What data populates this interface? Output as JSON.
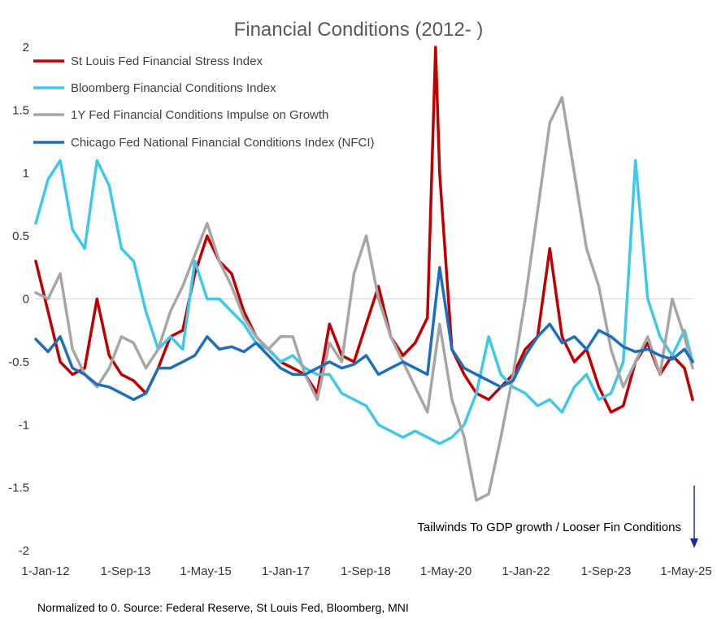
{
  "chart_data": {
    "type": "line",
    "title": "Financial Conditions (2012- )",
    "xlabel": "",
    "ylabel": "",
    "x_tick_labels": [
      "1-Jan-12",
      "1-Sep-13",
      "1-May-15",
      "1-Jan-17",
      "1-Sep-18",
      "1-May-20",
      "1-Jan-22",
      "1-Sep-23",
      "1-May-25"
    ],
    "x_range": [
      "2012-01",
      "2025-06"
    ],
    "ylim": [
      -2,
      2
    ],
    "y_ticks": [
      2,
      1.5,
      1,
      0.5,
      0,
      -0.5,
      -1,
      -1.5,
      -2
    ],
    "y_tick_labels": [
      "2",
      "1.5",
      "1",
      "0.5",
      "0",
      "-0.5",
      "-1",
      "-1.5",
      "-2"
    ],
    "zero_line": true,
    "grid": false,
    "legend_position": "top-left",
    "annotation": "Tailwinds  To GDP growth / Looser Fin Conditions",
    "annotation_arrow": "down",
    "footer": "Normalized to 0. Source: Federal Reserve, St Louis Fed, Bloomberg, MNI",
    "series": [
      {
        "name": "St Louis Fed Financial Stress Index",
        "color": "#c00000",
        "x": [
          "2012-01",
          "2012-04",
          "2012-07",
          "2012-10",
          "2013-01",
          "2013-04",
          "2013-07",
          "2013-10",
          "2014-01",
          "2014-04",
          "2014-07",
          "2014-10",
          "2015-01",
          "2015-04",
          "2015-07",
          "2015-10",
          "2016-01",
          "2016-04",
          "2016-07",
          "2016-10",
          "2017-01",
          "2017-04",
          "2017-07",
          "2017-10",
          "2018-01",
          "2018-04",
          "2018-07",
          "2018-10",
          "2019-01",
          "2019-04",
          "2019-07",
          "2019-10",
          "2020-01",
          "2020-03",
          "2020-04",
          "2020-07",
          "2020-10",
          "2021-01",
          "2021-04",
          "2021-07",
          "2021-10",
          "2022-01",
          "2022-04",
          "2022-07",
          "2022-10",
          "2023-01",
          "2023-04",
          "2023-07",
          "2023-10",
          "2024-01",
          "2024-04",
          "2024-07",
          "2024-10",
          "2025-01",
          "2025-04",
          "2025-06"
        ],
        "values": [
          0.3,
          -0.1,
          -0.5,
          -0.6,
          -0.55,
          0.0,
          -0.45,
          -0.6,
          -0.65,
          -0.75,
          -0.55,
          -0.3,
          -0.25,
          0.2,
          0.5,
          0.3,
          0.2,
          -0.1,
          -0.3,
          -0.4,
          -0.5,
          -0.55,
          -0.6,
          -0.75,
          -0.2,
          -0.45,
          -0.5,
          -0.2,
          0.1,
          -0.3,
          -0.45,
          -0.35,
          -0.15,
          2.0,
          1.0,
          -0.4,
          -0.6,
          -0.75,
          -0.8,
          -0.7,
          -0.6,
          -0.4,
          -0.3,
          0.4,
          -0.3,
          -0.5,
          -0.4,
          -0.7,
          -0.9,
          -0.85,
          -0.5,
          -0.35,
          -0.6,
          -0.45,
          -0.55,
          -0.8
        ]
      },
      {
        "name": "Bloomberg Financial Conditions Index",
        "color": "#3ec8ea",
        "x": [
          "2012-01",
          "2012-04",
          "2012-07",
          "2012-10",
          "2013-01",
          "2013-04",
          "2013-07",
          "2013-10",
          "2014-01",
          "2014-04",
          "2014-07",
          "2014-10",
          "2015-01",
          "2015-04",
          "2015-07",
          "2015-10",
          "2016-01",
          "2016-04",
          "2016-07",
          "2016-10",
          "2017-01",
          "2017-04",
          "2017-07",
          "2017-10",
          "2018-01",
          "2018-04",
          "2018-07",
          "2018-10",
          "2019-01",
          "2019-04",
          "2019-07",
          "2019-10",
          "2020-01",
          "2020-04",
          "2020-07",
          "2020-10",
          "2021-01",
          "2021-04",
          "2021-07",
          "2021-10",
          "2022-01",
          "2022-04",
          "2022-07",
          "2022-10",
          "2023-01",
          "2023-04",
          "2023-07",
          "2023-10",
          "2024-01",
          "2024-04",
          "2024-07",
          "2024-10",
          "2025-01",
          "2025-04",
          "2025-06"
        ],
        "values": [
          0.6,
          0.95,
          1.1,
          0.55,
          0.4,
          1.1,
          0.9,
          0.4,
          0.3,
          -0.1,
          -0.4,
          -0.3,
          -0.4,
          0.3,
          0.0,
          0.0,
          -0.1,
          -0.2,
          -0.35,
          -0.4,
          -0.5,
          -0.45,
          -0.55,
          -0.6,
          -0.6,
          -0.75,
          -0.8,
          -0.85,
          -1.0,
          -1.05,
          -1.1,
          -1.05,
          -1.1,
          -1.15,
          -1.1,
          -1.0,
          -0.75,
          -0.3,
          -0.6,
          -0.7,
          -0.75,
          -0.85,
          -0.8,
          -0.9,
          -0.7,
          -0.6,
          -0.8,
          -0.75,
          -0.5,
          1.1,
          0.0,
          -0.3,
          -0.45,
          -0.25,
          -0.5
        ]
      },
      {
        "name": "1Y Fed Financial Conditions Impulse on Growth",
        "color": "#a6a6a6",
        "x": [
          "2012-01",
          "2012-04",
          "2012-07",
          "2012-10",
          "2013-01",
          "2013-04",
          "2013-07",
          "2013-10",
          "2014-01",
          "2014-04",
          "2014-07",
          "2014-10",
          "2015-01",
          "2015-04",
          "2015-07",
          "2015-10",
          "2016-01",
          "2016-04",
          "2016-07",
          "2016-10",
          "2017-01",
          "2017-04",
          "2017-07",
          "2017-10",
          "2018-01",
          "2018-04",
          "2018-07",
          "2018-10",
          "2019-01",
          "2019-04",
          "2019-07",
          "2019-10",
          "2020-01",
          "2020-04",
          "2020-07",
          "2020-10",
          "2021-01",
          "2021-04",
          "2021-07",
          "2021-10",
          "2022-01",
          "2022-04",
          "2022-07",
          "2022-10",
          "2023-01",
          "2023-04",
          "2023-07",
          "2023-10",
          "2024-01",
          "2024-04",
          "2024-07",
          "2024-10",
          "2025-01",
          "2025-04",
          "2025-06"
        ],
        "values": [
          0.05,
          0.0,
          0.2,
          -0.4,
          -0.6,
          -0.7,
          -0.55,
          -0.3,
          -0.35,
          -0.55,
          -0.4,
          -0.1,
          0.1,
          0.35,
          0.6,
          0.3,
          0.1,
          -0.15,
          -0.3,
          -0.4,
          -0.3,
          -0.3,
          -0.6,
          -0.8,
          -0.35,
          -0.5,
          0.2,
          0.5,
          0.0,
          -0.3,
          -0.5,
          -0.7,
          -0.9,
          -0.2,
          -0.8,
          -1.1,
          -1.6,
          -1.55,
          -1.1,
          -0.6,
          0.0,
          0.7,
          1.4,
          1.6,
          1.0,
          0.4,
          0.1,
          -0.4,
          -0.7,
          -0.5,
          -0.3,
          -0.6,
          0.0,
          -0.3,
          -0.55
        ]
      },
      {
        "name": "Chicago Fed National Financial Conditions Index (NFCI)",
        "color": "#1f6ebd",
        "x": [
          "2012-01",
          "2012-04",
          "2012-07",
          "2012-10",
          "2013-01",
          "2013-04",
          "2013-07",
          "2013-10",
          "2014-01",
          "2014-04",
          "2014-07",
          "2014-10",
          "2015-01",
          "2015-04",
          "2015-07",
          "2015-10",
          "2016-01",
          "2016-04",
          "2016-07",
          "2016-10",
          "2017-01",
          "2017-04",
          "2017-07",
          "2017-10",
          "2018-01",
          "2018-04",
          "2018-07",
          "2018-10",
          "2019-01",
          "2019-04",
          "2019-07",
          "2019-10",
          "2020-01",
          "2020-04",
          "2020-07",
          "2020-10",
          "2021-01",
          "2021-04",
          "2021-07",
          "2021-10",
          "2022-01",
          "2022-04",
          "2022-07",
          "2022-10",
          "2023-01",
          "2023-04",
          "2023-07",
          "2023-10",
          "2024-01",
          "2024-04",
          "2024-07",
          "2024-10",
          "2025-01",
          "2025-04",
          "2025-06"
        ],
        "values": [
          -0.32,
          -0.42,
          -0.3,
          -0.55,
          -0.6,
          -0.68,
          -0.7,
          -0.75,
          -0.8,
          -0.75,
          -0.55,
          -0.55,
          -0.5,
          -0.45,
          -0.3,
          -0.4,
          -0.38,
          -0.42,
          -0.35,
          -0.45,
          -0.55,
          -0.6,
          -0.6,
          -0.55,
          -0.5,
          -0.55,
          -0.52,
          -0.45,
          -0.6,
          -0.55,
          -0.5,
          -0.55,
          -0.6,
          0.25,
          -0.4,
          -0.55,
          -0.6,
          -0.65,
          -0.7,
          -0.65,
          -0.45,
          -0.3,
          -0.2,
          -0.35,
          -0.3,
          -0.4,
          -0.25,
          -0.3,
          -0.38,
          -0.42,
          -0.4,
          -0.45,
          -0.48,
          -0.4,
          -0.5
        ]
      }
    ]
  }
}
